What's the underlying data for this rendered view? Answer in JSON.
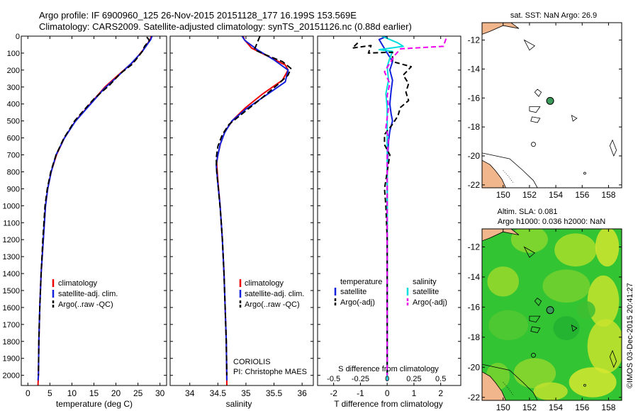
{
  "header": {
    "line1": "Argo profile: IF 6900960_125 26-Nov-2015 20151128_177 16.199S 153.569E",
    "line2": "Climatology: CARS2009. Satellite-adjusted climatology: synTS_20151126.nc (0.88d earlier)"
  },
  "depth_axis": {
    "ticks": [
      0,
      100,
      200,
      300,
      400,
      500,
      600,
      700,
      800,
      900,
      1000,
      1100,
      1200,
      1300,
      1400,
      1500,
      1600,
      1700,
      1800,
      1900,
      2000
    ],
    "range": [
      0,
      2060
    ]
  },
  "chart_data": [
    {
      "type": "line",
      "id": "temperature",
      "xlabel": "temperature (deg C)",
      "xlim": [
        -1.5,
        31.5
      ],
      "xticks": [
        0,
        5,
        10,
        15,
        20,
        25,
        30
      ],
      "xtick_labels": [
        "0",
        "5",
        "10",
        "15",
        "20",
        "25",
        "30"
      ],
      "legend": [
        "climatology",
        "satellite-adj. clim.",
        "Argo(..raw -QC)"
      ],
      "series": [
        {
          "name": "climatology",
          "color": "#ee0000",
          "dash": "",
          "points": [
            [
              28.0,
              0
            ],
            [
              27.8,
              20
            ],
            [
              26.2,
              80
            ],
            [
              24.0,
              150
            ],
            [
              20.5,
              230
            ],
            [
              17.5,
              300
            ],
            [
              14.8,
              380
            ],
            [
              12.5,
              450
            ],
            [
              10.8,
              500
            ],
            [
              9.3,
              560
            ],
            [
              8.3,
              600
            ],
            [
              6.5,
              700
            ],
            [
              5.3,
              800
            ],
            [
              4.5,
              900
            ],
            [
              4.0,
              1000
            ],
            [
              3.5,
              1200
            ],
            [
              3.0,
              1400
            ],
            [
              2.7,
              1600
            ],
            [
              2.5,
              1800
            ],
            [
              2.4,
              2000
            ],
            [
              2.3,
              2060
            ]
          ]
        },
        {
          "name": "satellite-adj. clim.",
          "color": "#1020dd",
          "dash": "",
          "points": [
            [
              28.2,
              0
            ],
            [
              27.9,
              20
            ],
            [
              26.0,
              90
            ],
            [
              23.5,
              160
            ],
            [
              20.3,
              240
            ],
            [
              17.3,
              310
            ],
            [
              14.6,
              390
            ],
            [
              12.4,
              455
            ],
            [
              10.7,
              505
            ],
            [
              9.2,
              565
            ],
            [
              8.2,
              605
            ],
            [
              6.4,
              700
            ],
            [
              5.3,
              800
            ],
            [
              4.5,
              900
            ],
            [
              4.0,
              1000
            ],
            [
              3.5,
              1200
            ],
            [
              3.0,
              1400
            ],
            [
              2.7,
              1600
            ],
            [
              2.5,
              1800
            ],
            [
              2.4,
              2000
            ],
            [
              2.3,
              2030
            ]
          ]
        },
        {
          "name": "Argo(..raw -QC)",
          "color": "#000000",
          "dash": "8,4",
          "points": [
            [
              27.0,
              5
            ],
            [
              27.6,
              25
            ],
            [
              26.5,
              60
            ],
            [
              26.0,
              90
            ],
            [
              24.5,
              140
            ],
            [
              23.5,
              170
            ],
            [
              21.0,
              220
            ],
            [
              18.5,
              290
            ],
            [
              15.0,
              370
            ],
            [
              12.6,
              440
            ],
            [
              10.6,
              500
            ],
            [
              9.2,
              560
            ],
            [
              8.2,
              600
            ],
            [
              6.4,
              700
            ],
            [
              5.2,
              800
            ],
            [
              4.4,
              900
            ],
            [
              3.9,
              1000
            ],
            [
              3.4,
              1200
            ],
            [
              3.0,
              1400
            ],
            [
              2.7,
              1600
            ],
            [
              2.5,
              1800
            ],
            [
              2.4,
              2000
            ]
          ]
        }
      ]
    },
    {
      "type": "line",
      "id": "salinity",
      "xlabel": "salinity",
      "xlim": [
        33.65,
        36.2
      ],
      "xticks": [
        34,
        34.5,
        35,
        35.5,
        36
      ],
      "xtick_labels": [
        "34",
        "34.5",
        "35",
        "35.5",
        "36"
      ],
      "legend": [
        "climatology",
        "satellite-adj. clim.",
        "Argo(..raw -QC)"
      ],
      "annotation": [
        "CORIOLIS",
        "PI: Christophe MAES"
      ],
      "series": [
        {
          "name": "climatology",
          "color": "#ee0000",
          "dash": "",
          "points": [
            [
              34.95,
              0
            ],
            [
              34.97,
              20
            ],
            [
              35.1,
              70
            ],
            [
              35.4,
              120
            ],
            [
              35.7,
              170
            ],
            [
              35.75,
              200
            ],
            [
              35.65,
              260
            ],
            [
              35.3,
              340
            ],
            [
              35.0,
              420
            ],
            [
              34.78,
              490
            ],
            [
              34.63,
              560
            ],
            [
              34.55,
              630
            ],
            [
              34.5,
              700
            ],
            [
              34.48,
              750
            ],
            [
              34.5,
              850
            ],
            [
              34.54,
              1000
            ],
            [
              34.58,
              1200
            ],
            [
              34.61,
              1400
            ],
            [
              34.63,
              1600
            ],
            [
              34.65,
              1800
            ],
            [
              34.66,
              2060
            ]
          ]
        },
        {
          "name": "satellite-adj. clim.",
          "color": "#1020dd",
          "dash": "",
          "points": [
            [
              34.93,
              0
            ],
            [
              34.98,
              25
            ],
            [
              35.2,
              80
            ],
            [
              35.5,
              140
            ],
            [
              35.75,
              200
            ],
            [
              35.7,
              270
            ],
            [
              35.35,
              350
            ],
            [
              35.0,
              430
            ],
            [
              34.75,
              500
            ],
            [
              34.62,
              570
            ],
            [
              34.54,
              640
            ],
            [
              34.49,
              720
            ],
            [
              34.47,
              760
            ],
            [
              34.5,
              870
            ],
            [
              34.54,
              1000
            ],
            [
              34.58,
              1200
            ],
            [
              34.61,
              1400
            ],
            [
              34.63,
              1600
            ],
            [
              34.65,
              1800
            ],
            [
              34.66,
              2030
            ]
          ]
        },
        {
          "name": "Argo(..raw -QC)",
          "color": "#000000",
          "dash": "8,4",
          "points": [
            [
              35.25,
              0
            ],
            [
              35.2,
              40
            ],
            [
              35.15,
              80
            ],
            [
              35.35,
              110
            ],
            [
              35.65,
              150
            ],
            [
              35.8,
              190
            ],
            [
              35.75,
              230
            ],
            [
              35.55,
              290
            ],
            [
              35.3,
              360
            ],
            [
              35.0,
              440
            ],
            [
              34.7,
              520
            ],
            [
              34.58,
              580
            ],
            [
              34.5,
              650
            ],
            [
              34.47,
              720
            ],
            [
              34.48,
              800
            ],
            [
              34.51,
              900
            ],
            [
              34.55,
              1050
            ],
            [
              34.58,
              1200
            ],
            [
              34.61,
              1400
            ],
            [
              34.63,
              1600
            ],
            [
              34.65,
              1800
            ],
            [
              34.66,
              2000
            ]
          ]
        }
      ]
    },
    {
      "type": "line",
      "id": "difference",
      "xlabel": "T difference from climatology",
      "xlim": [
        -2.6,
        2.75
      ],
      "xticks": [
        -2,
        -1,
        0,
        1,
        2
      ],
      "xtick_labels": [
        "-2",
        "-1",
        "0",
        "1",
        "2"
      ],
      "top_ticks": [
        -0.5,
        -0.25,
        0,
        0.25,
        0.5
      ],
      "top_tick_labels": [
        "-0.5",
        "-0.25",
        "0",
        "0.25",
        "0.5"
      ],
      "top_scale": 4,
      "top_label": "S difference from climatology",
      "legend_left_title": "temperature",
      "legend_right_title": "salinity",
      "legend_left": [
        "satellite",
        "Argo(-adj)"
      ],
      "legend_right": [
        "satellite",
        "Argo(-adj)"
      ],
      "series": [
        {
          "name": "T satellite",
          "color": "#1020dd",
          "dash": "",
          "points": [
            [
              0.0,
              0
            ],
            [
              -0.3,
              20
            ],
            [
              -0.15,
              60
            ],
            [
              0.0,
              100
            ],
            [
              0.2,
              150
            ],
            [
              0.1,
              200
            ],
            [
              0.2,
              260
            ],
            [
              0.15,
              320
            ],
            [
              0.1,
              400
            ],
            [
              0.15,
              460
            ],
            [
              0.2,
              500
            ],
            [
              0.1,
              560
            ],
            [
              0.05,
              620
            ],
            [
              0.02,
              700
            ],
            [
              0.0,
              800
            ],
            [
              0.0,
              1000
            ],
            [
              0.0,
              2030
            ]
          ]
        },
        {
          "name": "S satellite",
          "color": "#00dddd",
          "dash": "",
          "points": [
            [
              -0.2,
              0
            ],
            [
              0.4,
              40
            ],
            [
              0.6,
              60
            ],
            [
              -0.3,
              80
            ],
            [
              0.2,
              90
            ],
            [
              0.1,
              130
            ],
            [
              0.0,
              180
            ],
            [
              0.05,
              260
            ],
            [
              -0.05,
              340
            ],
            [
              0.0,
              420
            ],
            [
              0.0,
              520
            ],
            [
              0.0,
              700
            ],
            [
              0.0,
              1000
            ],
            [
              0.0,
              2030
            ]
          ]
        },
        {
          "name": "T Argo(-adj)",
          "color": "#000000",
          "dash": "7,4",
          "points": [
            [
              -1.1,
              40
            ],
            [
              -1.3,
              70
            ],
            [
              -0.6,
              55
            ],
            [
              -0.7,
              100
            ],
            [
              0.2,
              95
            ],
            [
              0.2,
              150
            ],
            [
              0.9,
              180
            ],
            [
              0.6,
              230
            ],
            [
              0.8,
              280
            ],
            [
              0.7,
              330
            ],
            [
              0.8,
              380
            ],
            [
              0.5,
              420
            ],
            [
              0.4,
              470
            ],
            [
              0.2,
              520
            ],
            [
              -0.1,
              580
            ],
            [
              -0.1,
              640
            ],
            [
              0.1,
              700
            ],
            [
              0.0,
              800
            ],
            [
              -0.1,
              900
            ],
            [
              -0.05,
              1000
            ],
            [
              0.0,
              1200
            ],
            [
              0.0,
              2000
            ]
          ]
        },
        {
          "name": "S Argo(-adj)",
          "color": "#ee00ee",
          "dash": "7,4",
          "points": [
            [
              2.2,
              15
            ],
            [
              2.1,
              60
            ],
            [
              0.5,
              75
            ],
            [
              0.3,
              110
            ],
            [
              0.1,
              160
            ],
            [
              -0.1,
              210
            ],
            [
              0.1,
              280
            ],
            [
              0.0,
              350
            ],
            [
              0.05,
              420
            ],
            [
              0.0,
              480
            ],
            [
              -0.05,
              540
            ],
            [
              0.05,
              600
            ],
            [
              0.0,
              700
            ],
            [
              0.0,
              900
            ],
            [
              0.0,
              1100
            ],
            [
              0.0,
              1400
            ],
            [
              0.0,
              2000
            ]
          ]
        }
      ]
    }
  ],
  "map_sst": {
    "title": "sat. SST: NaN Argo: 26.9",
    "xticks": [
      150,
      152,
      154,
      156,
      158
    ],
    "yticks": [
      -12,
      -14,
      -16,
      -18,
      -20,
      -22
    ],
    "xlim": [
      148.4,
      159.0
    ],
    "ylim": [
      -22.2,
      -10.8
    ],
    "float_lon": 153.569,
    "float_lat": -16.199
  },
  "map_sla": {
    "title_line1": "Altim. SLA: 0.081",
    "title_line2": "Argo h1000: 0.036 h2000: NaN",
    "xticks": [
      150,
      152,
      154,
      156,
      158
    ],
    "yticks": [
      -12,
      -14,
      -16,
      -18,
      -20,
      -22
    ],
    "xlim": [
      148.4,
      159.0
    ],
    "ylim": [
      -22.2,
      -10.8
    ],
    "float_lon": 153.569,
    "float_lat": -16.199
  },
  "credit": "©IMOS 03-Dec-2015 20:41:27",
  "colors": {
    "land": "#f2b68c",
    "sla_green": "#33c433",
    "sla_yellow": "#d8e830",
    "float_marker": "#3c9a5a"
  }
}
